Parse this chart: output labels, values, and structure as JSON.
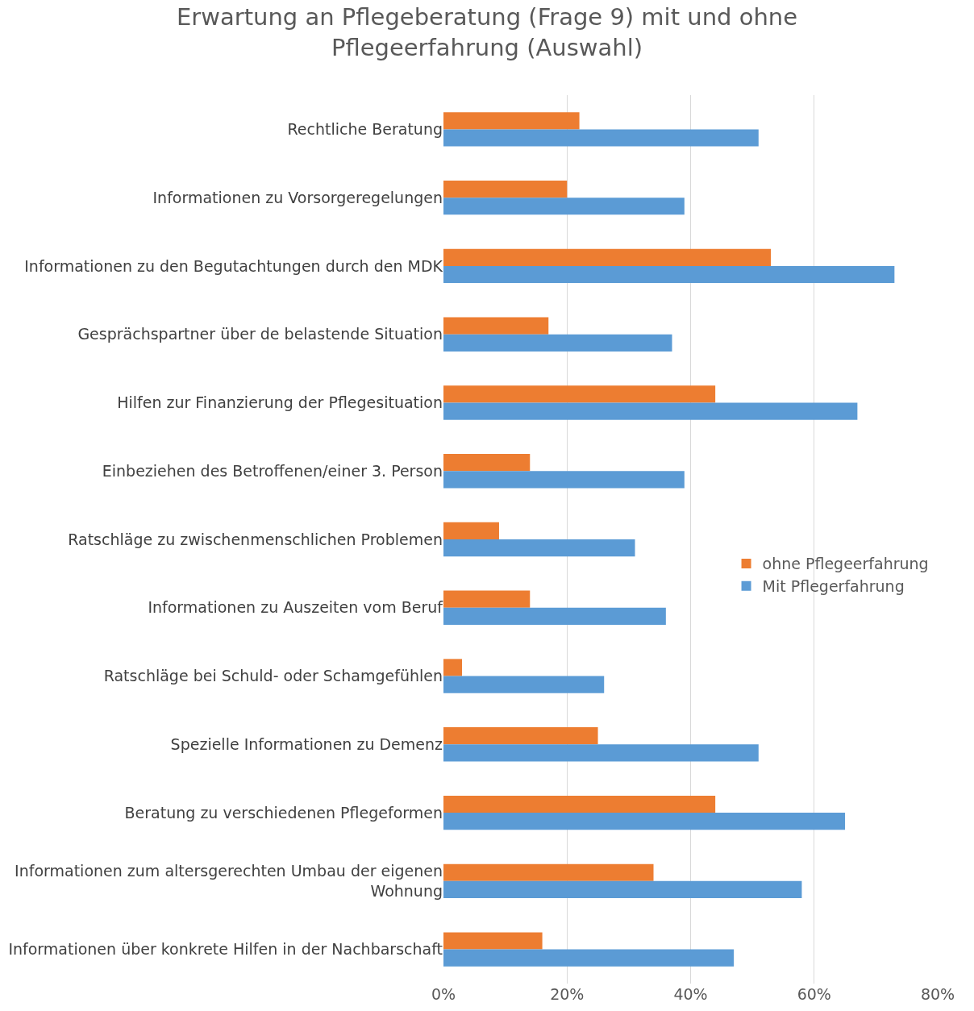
{
  "chart_data": {
    "type": "bar",
    "orientation": "horizontal",
    "title": "Erwartung an Pflegeberatung (Frage 9) mit und ohne\nPflegeerfahrung (Auswahl)",
    "categories": [
      "Rechtliche Beratung",
      "Informationen zu Vorsorgeregelungen",
      "Informationen zu den Begutachtungen durch den MDK",
      "Gesprächspartner über de belastende Situation",
      "Hilfen zur Finanzierung der Pflegesituation",
      "Einbeziehen des Betroffenen/einer 3. Person",
      "Ratschläge zu zwischenmenschlichen Problemen",
      "Informationen zu Auszeiten vom Beruf",
      "Ratschläge bei Schuld- oder Schamgefühlen",
      "Spezielle Informationen zu Demenz",
      "Beratung zu verschiedenen Pflegeformen",
      "Informationen zum altersgerechten Umbau der eigenen\nWohnung",
      "Informationen über konkrete Hilfen in der Nachbarschaft"
    ],
    "series": [
      {
        "name": "ohne Pflegeerfahrung",
        "color": "#ed7d31",
        "values": [
          22,
          20,
          53,
          17,
          44,
          14,
          9,
          14,
          3,
          25,
          44,
          34,
          16
        ]
      },
      {
        "name": "Mit Pflegerfahrung",
        "color": "#5b9bd5",
        "values": [
          51,
          39,
          73,
          37,
          67,
          39,
          31,
          36,
          26,
          51,
          65,
          58,
          47
        ]
      }
    ],
    "xlim": [
      0,
      80
    ],
    "xticks": [
      {
        "value": 0,
        "label": "0%"
      },
      {
        "value": 20,
        "label": "20%"
      },
      {
        "value": 40,
        "label": "40%"
      },
      {
        "value": 60,
        "label": "60%"
      },
      {
        "value": 80,
        "label": "80%"
      }
    ],
    "grid": "x",
    "legend": "right"
  }
}
